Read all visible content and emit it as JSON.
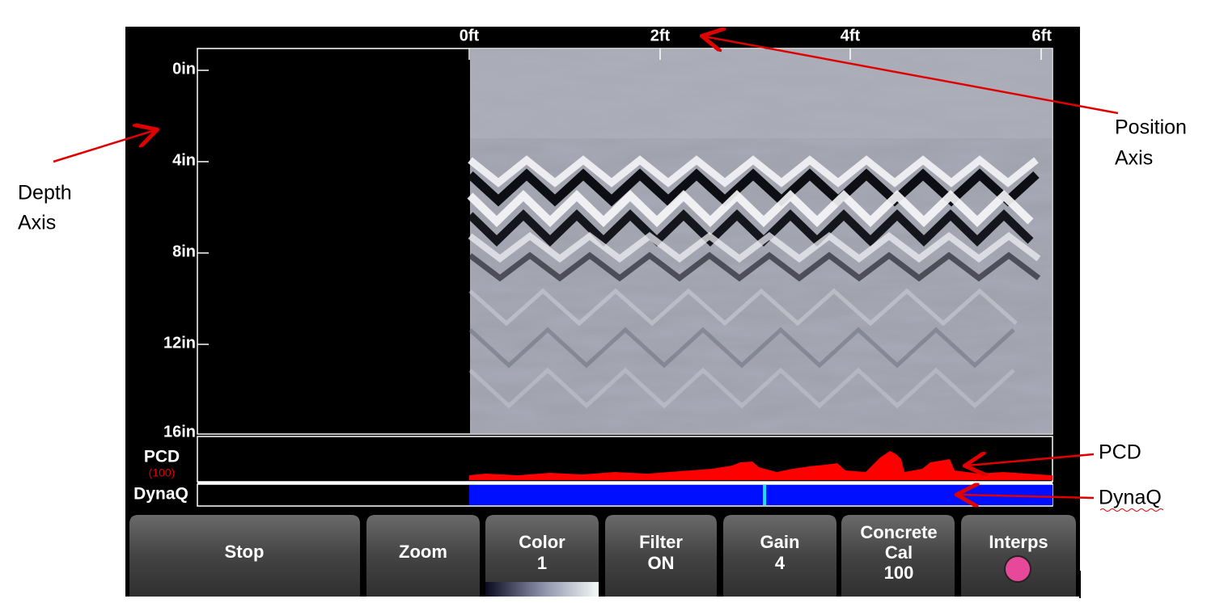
{
  "position_axis": {
    "ticks": [
      "0ft",
      "2ft",
      "4ft",
      "6ft"
    ]
  },
  "depth_axis": {
    "ticks": [
      "0in",
      "4in",
      "8in",
      "12in",
      "16in"
    ]
  },
  "pcd": {
    "label": "PCD",
    "scale": "(100)"
  },
  "dynaq": {
    "label": "DynaQ"
  },
  "buttons": [
    {
      "lines": [
        "Stop"
      ]
    },
    {
      "lines": [
        "Zoom"
      ]
    },
    {
      "lines": [
        "Color",
        "1"
      ]
    },
    {
      "lines": [
        "Filter",
        "ON"
      ]
    },
    {
      "lines": [
        "Gain",
        "4"
      ]
    },
    {
      "lines": [
        "Concrete",
        "Cal",
        "100"
      ]
    },
    {
      "lines": [
        "Interps"
      ]
    }
  ],
  "annotations": [
    {
      "lines": [
        "Depth",
        "Axis"
      ]
    },
    {
      "lines": [
        "Position",
        "Axis"
      ]
    },
    {
      "lines": [
        "PCD"
      ]
    },
    {
      "lines": [
        "DynaQ"
      ]
    }
  ]
}
